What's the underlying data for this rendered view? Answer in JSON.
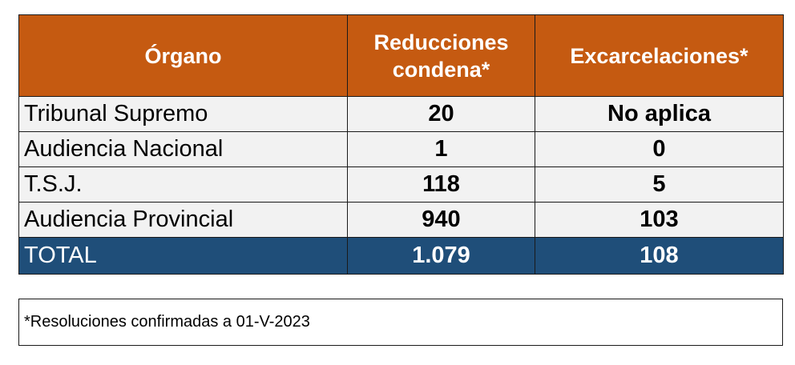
{
  "table": {
    "headers": [
      "Órgano",
      "Reducciones condena*",
      "Excarcelaciones*"
    ],
    "rows": [
      {
        "organo": "Tribunal Supremo",
        "reducciones": "20",
        "excarcelaciones": "No aplica"
      },
      {
        "organo": "Audiencia Nacional",
        "reducciones": "1",
        "excarcelaciones": "0"
      },
      {
        "organo": "T.S.J.",
        "reducciones": "118",
        "excarcelaciones": "5"
      },
      {
        "organo": "Audiencia Provincial",
        "reducciones": "940",
        "excarcelaciones": "103"
      }
    ],
    "total": {
      "organo": "TOTAL",
      "reducciones": "1.079",
      "excarcelaciones": "108"
    }
  },
  "footnote": "*Resoluciones confirmadas a 01-V-2023",
  "colors": {
    "header_bg": "#c55a11",
    "row_bg": "#f2f2f2",
    "total_bg": "#1f4e79"
  }
}
